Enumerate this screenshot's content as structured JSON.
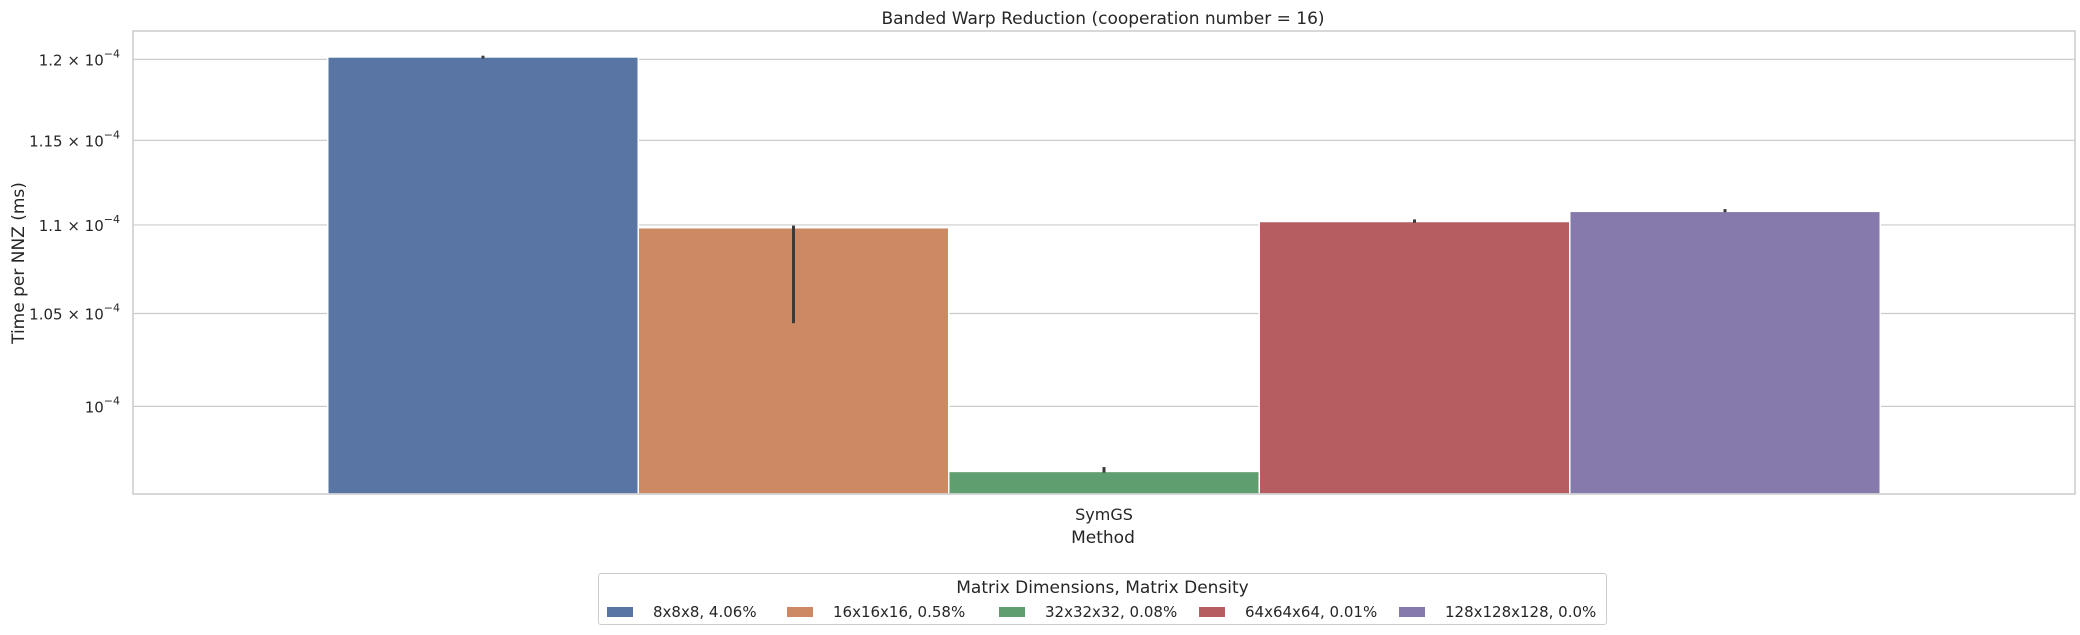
{
  "chart_data": {
    "type": "bar",
    "title": "Banded Warp Reduction (cooperation number = 16)",
    "xlabel": "Method",
    "ylabel": "Time per NNZ (ms)",
    "yscale": "log",
    "ylim": [
      9.55e-05,
      0.0001218
    ],
    "yticks": [
      {
        "value": 0.0001,
        "mantissa": "",
        "exponent": "−4"
      },
      {
        "value": 0.000105,
        "mantissa": "1.05",
        "exponent": "−4"
      },
      {
        "value": 0.00011,
        "mantissa": "1.1",
        "exponent": "−4"
      },
      {
        "value": 0.000115,
        "mantissa": "1.15",
        "exponent": "−4"
      },
      {
        "value": 0.00012,
        "mantissa": "1.2",
        "exponent": "−4"
      }
    ],
    "categories": [
      "SymGS"
    ],
    "grid": true,
    "legend_title": "Matrix Dimensions, Matrix Density",
    "legend_position": "bottom-center, outside",
    "series": [
      {
        "name": "8x8x8, 4.06%",
        "color": "#5875a4",
        "values": [
          0.00012015
        ],
        "error": [
          [
            0.00012005,
            0.00012023
          ]
        ]
      },
      {
        "name": "16x16x16, 0.58%",
        "color": "#cc8963",
        "values": [
          0.00010984
        ],
        "error": [
          [
            0.00010447,
            0.00010996
          ]
        ]
      },
      {
        "name": "32x32x32, 0.08%",
        "color": "#5f9e6e",
        "values": [
          9.664e-05
        ],
        "error": [
          [
            9.658e-05,
            9.686e-05
          ]
        ]
      },
      {
        "name": "64x64x64, 0.01%",
        "color": "#b55d60",
        "values": [
          0.0001102
        ],
        "error": [
          [
            0.00011013,
            0.00011032
          ]
        ]
      },
      {
        "name": "128x128x128, 0.0%",
        "color": "#857aab",
        "values": [
          0.00011079
        ],
        "error": [
          [
            0.00011074,
            0.00011092
          ]
        ]
      }
    ]
  }
}
